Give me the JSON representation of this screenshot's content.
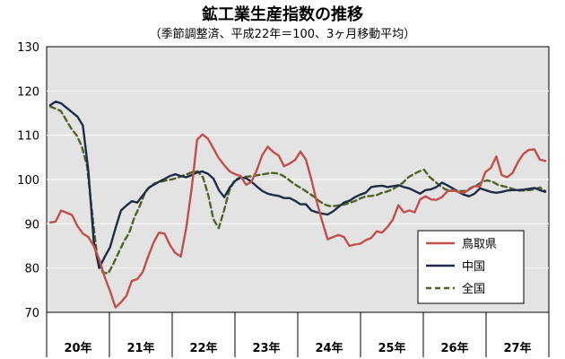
{
  "chart_data": {
    "type": "line",
    "title": "鉱工業生産指数の推移",
    "subtitle": "（季節調整済、平成22年＝100、3ヶ月移動平均）",
    "ylim": [
      70,
      130
    ],
    "yticks": [
      "70",
      "80",
      "90",
      "100",
      "110",
      "120",
      "130"
    ],
    "year_labels": [
      "20年",
      "21年",
      "22年",
      "23年",
      "24年",
      "25年",
      "26年",
      "27年"
    ],
    "grid": true,
    "legend_position": "bottom-right",
    "series": [
      {
        "name": "鳥取県",
        "color": "#c0504d",
        "dash": "none",
        "values": [
          90.3,
          90.5,
          93,
          92.5,
          92,
          89.5,
          87.8,
          87,
          85,
          82,
          78,
          74.8,
          71.1,
          72.3,
          73.7,
          77.1,
          77.5,
          79.1,
          82.6,
          85.8,
          88,
          87.8,
          85.2,
          83.4,
          82.6,
          89,
          98,
          109,
          110.2,
          109.2,
          107,
          104.8,
          103.2,
          101.8,
          101.2,
          100.8,
          98.8,
          99.5,
          102.2,
          105.6,
          107.4,
          106.2,
          105.4,
          103,
          103.6,
          104.4,
          106.3,
          104.5,
          100,
          95,
          90.5,
          86.5,
          87,
          87.5,
          87,
          85,
          85.3,
          85.5,
          86.3,
          86.8,
          88.3,
          88,
          89.3,
          91,
          94.2,
          92.6,
          93,
          92.6,
          95.5,
          96.2,
          95.5,
          95.4,
          96,
          97.3,
          97.6,
          97.2,
          97,
          97.7,
          98.5,
          98.4,
          101.7,
          102.6,
          105.2,
          101,
          100.5,
          101.5,
          104,
          105.8,
          106.7,
          106.8,
          104.5,
          104.2
        ]
      },
      {
        "name": "中国",
        "color": "#1f2d44",
        "dash": "none",
        "values": [
          116.8,
          117.6,
          117.2,
          116.2,
          115.2,
          114.2,
          112.2,
          102,
          86,
          80,
          82.5,
          84.7,
          89,
          93,
          94.1,
          95.1,
          94.8,
          96.4,
          98,
          98.8,
          99.5,
          100.1,
          100.8,
          101.2,
          100.8,
          100.5,
          101,
          101.6,
          101.8,
          101.3,
          100.2,
          97.6,
          96,
          98.2,
          99.7,
          100.4,
          100.3,
          99.5,
          98.4,
          97.4,
          96.8,
          96.5,
          96.3,
          95.8,
          95.8,
          95.2,
          94.4,
          94.4,
          93,
          92.6,
          92.3,
          92.1,
          92.8,
          93.8,
          94.8,
          95.2,
          96,
          96.6,
          97,
          98.3,
          98.5,
          98.6,
          98.3,
          98.5,
          98.7,
          98.3,
          98,
          97.4,
          96.8,
          97.6,
          97.8,
          98.3,
          99.3,
          98.7,
          98,
          97.2,
          96.6,
          96.2,
          96.8,
          98,
          97.6,
          97.2,
          97,
          97.2,
          97.5,
          97.6,
          97.6,
          97.7,
          97.9,
          98.1,
          97.6,
          97.2
        ]
      },
      {
        "name": "全国",
        "color": "#4f6228",
        "dash": "6,4",
        "values": [
          116.5,
          116,
          115.5,
          113.5,
          111.5,
          110,
          107.5,
          103,
          92,
          81.5,
          79,
          78.8,
          81,
          83.5,
          86,
          88,
          91.5,
          94,
          97,
          98.5,
          99.2,
          99.5,
          99.8,
          100,
          100.3,
          100.8,
          101.2,
          101.7,
          101.8,
          100.5,
          96.5,
          91,
          89,
          93,
          97.5,
          99.8,
          100.4,
          100.6,
          100.7,
          100.9,
          101.1,
          101.3,
          101.5,
          101.4,
          101,
          100.2,
          99.3,
          98.5,
          97.8,
          97,
          96.2,
          95.2,
          94.4,
          94,
          94,
          94.2,
          94.4,
          94.8,
          95.2,
          95.8,
          96.2,
          96.3,
          96.5,
          97,
          97.3,
          97.8,
          98.5,
          99.3,
          100.5,
          101.2,
          101.8,
          102.2,
          100.6,
          99.6,
          98.6,
          97.8,
          97.4,
          97.5,
          97.4,
          97.4,
          98.2,
          98.7,
          99.5,
          99.8,
          99.5,
          98.8,
          98.5,
          98.2,
          97.8,
          97.5,
          97.5,
          97.6,
          97.8,
          98.2,
          97.4
        ]
      }
    ]
  }
}
